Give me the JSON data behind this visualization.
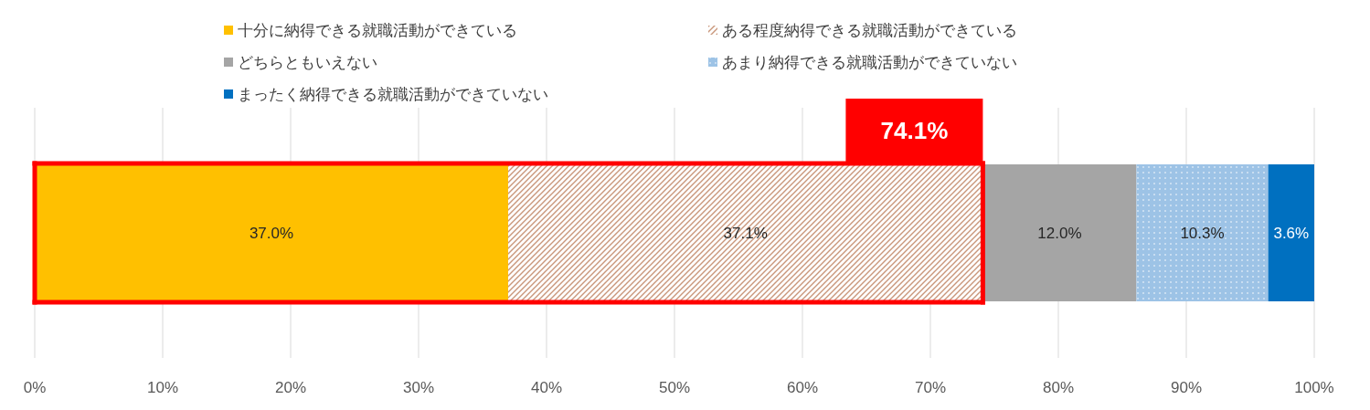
{
  "chart_data": {
    "type": "bar",
    "orientation": "horizontal",
    "stacked": true,
    "categories": [
      null
    ],
    "series": [
      {
        "name": "十分に納得できる就職活動ができている",
        "color": "#ffc000",
        "values": [
          37.0
        ],
        "value_labels": [
          "37.0%"
        ]
      },
      {
        "name": "ある程度納得できる就職活動ができている",
        "color": "#c9967a",
        "values": [
          37.1
        ],
        "value_labels": [
          "37.1%"
        ]
      },
      {
        "name": "どちらともいえない",
        "color": "#a5a5a5",
        "values": [
          12.0
        ],
        "value_labels": [
          "12.0%"
        ]
      },
      {
        "name": "あまり納得できる就職活動ができていない",
        "color": "#9dc3e6",
        "values": [
          10.3
        ],
        "value_labels": [
          "10.3%"
        ]
      },
      {
        "name": "まったく納得できる就職活動ができていない",
        "color": "#0070c0",
        "values": [
          3.6
        ],
        "value_labels": [
          "3.6%"
        ]
      }
    ],
    "xlim": [
      0,
      100
    ],
    "xticks": [
      {
        "value": 0,
        "label": "0%"
      },
      {
        "value": 10,
        "label": "10%"
      },
      {
        "value": 20,
        "label": "20%"
      },
      {
        "value": 30,
        "label": "30%"
      },
      {
        "value": 40,
        "label": "40%"
      },
      {
        "value": 50,
        "label": "50%"
      },
      {
        "value": 60,
        "label": "60%"
      },
      {
        "value": 70,
        "label": "70%"
      },
      {
        "value": 80,
        "label": "80%"
      },
      {
        "value": 90,
        "label": "90%"
      },
      {
        "value": 100,
        "label": "100%"
      }
    ],
    "grid": "x",
    "legend": "top",
    "annotations": [
      "74.1%"
    ]
  }
}
